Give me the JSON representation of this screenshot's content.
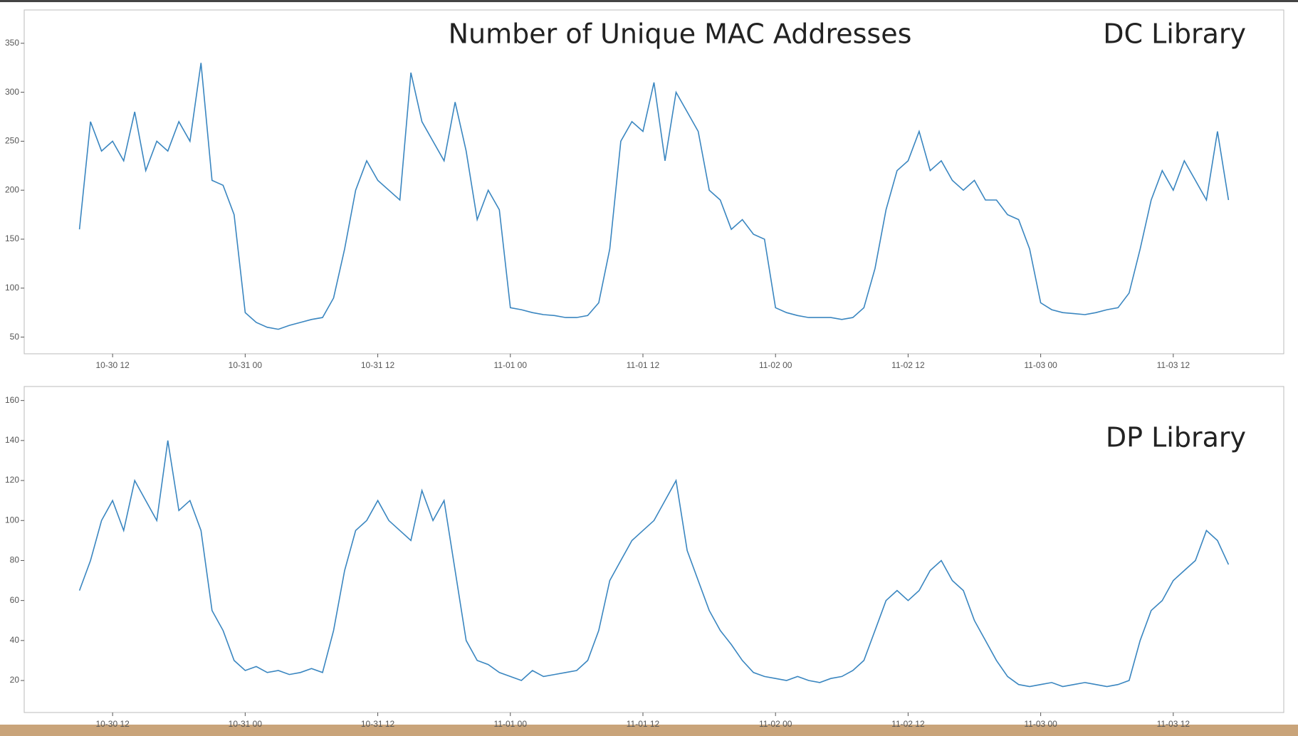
{
  "chart_data": [
    {
      "type": "line",
      "title": "Number of Unique MAC Addresses",
      "annotation": "DC Library",
      "x": [
        "10-30 09",
        "10-30 10",
        "10-30 11",
        "10-30 12",
        "10-30 13",
        "10-30 14",
        "10-30 15",
        "10-30 16",
        "10-30 17",
        "10-30 18",
        "10-30 19",
        "10-30 20",
        "10-30 21",
        "10-30 22",
        "10-30 23",
        "10-31 00",
        "10-31 01",
        "10-31 02",
        "10-31 03",
        "10-31 04",
        "10-31 05",
        "10-31 06",
        "10-31 07",
        "10-31 08",
        "10-31 09",
        "10-31 10",
        "10-31 11",
        "10-31 12",
        "10-31 13",
        "10-31 14",
        "10-31 15",
        "10-31 16",
        "10-31 17",
        "10-31 18",
        "10-31 19",
        "10-31 20",
        "10-31 21",
        "10-31 22",
        "10-31 23",
        "11-01 00",
        "11-01 01",
        "11-01 02",
        "11-01 03",
        "11-01 04",
        "11-01 05",
        "11-01 06",
        "11-01 07",
        "11-01 08",
        "11-01 09",
        "11-01 10",
        "11-01 11",
        "11-01 12",
        "11-01 13",
        "11-01 14",
        "11-01 15",
        "11-01 16",
        "11-01 17",
        "11-01 18",
        "11-01 19",
        "11-01 20",
        "11-01 21",
        "11-01 22",
        "11-01 23",
        "11-02 00",
        "11-02 01",
        "11-02 02",
        "11-02 03",
        "11-02 04",
        "11-02 05",
        "11-02 06",
        "11-02 07",
        "11-02 08",
        "11-02 09",
        "11-02 10",
        "11-02 11",
        "11-02 12",
        "11-02 13",
        "11-02 14",
        "11-02 15",
        "11-02 16",
        "11-02 17",
        "11-02 18",
        "11-02 19",
        "11-02 20",
        "11-02 21",
        "11-02 22",
        "11-02 23",
        "11-03 00",
        "11-03 01",
        "11-03 02",
        "11-03 03",
        "11-03 04",
        "11-03 05",
        "11-03 06",
        "11-03 07",
        "11-03 08",
        "11-03 09",
        "11-03 10",
        "11-03 11",
        "11-03 12",
        "11-03 13",
        "11-03 14",
        "11-03 15",
        "11-03 16",
        "11-03 17"
      ],
      "series": [
        {
          "color": "#3a86c0",
          "values": [
            160,
            270,
            240,
            250,
            230,
            280,
            220,
            250,
            240,
            270,
            250,
            330,
            210,
            205,
            175,
            75,
            65,
            60,
            58,
            62,
            65,
            68,
            70,
            90,
            140,
            200,
            230,
            210,
            200,
            190,
            320,
            270,
            250,
            230,
            290,
            240,
            170,
            200,
            180,
            80,
            78,
            75,
            73,
            72,
            70,
            70,
            72,
            85,
            140,
            250,
            270,
            260,
            310,
            230,
            300,
            280,
            260,
            200,
            190,
            160,
            170,
            155,
            150,
            80,
            75,
            72,
            70,
            70,
            70,
            68,
            70,
            80,
            120,
            180,
            220,
            230,
            260,
            220,
            230,
            210,
            200,
            210,
            190,
            190,
            175,
            170,
            140,
            85,
            78,
            75,
            74,
            73,
            75,
            78,
            80,
            95,
            140,
            190,
            220,
            200,
            230,
            210,
            190,
            260,
            190
          ]
        }
      ],
      "xlim": [
        "10-30 04",
        "11-03 22"
      ],
      "xticks": [
        "10-30 12",
        "10-31 00",
        "10-31 12",
        "11-01 00",
        "11-01 12",
        "11-02 00",
        "11-02 12",
        "11-03 00",
        "11-03 12"
      ],
      "ylim": [
        33,
        384
      ],
      "yticks": [
        50,
        100,
        150,
        200,
        250,
        300,
        350
      ]
    },
    {
      "type": "line",
      "annotation": "DP Library",
      "x": [
        "10-30 09",
        "10-30 10",
        "10-30 11",
        "10-30 12",
        "10-30 13",
        "10-30 14",
        "10-30 15",
        "10-30 16",
        "10-30 17",
        "10-30 18",
        "10-30 19",
        "10-30 20",
        "10-30 21",
        "10-30 22",
        "10-30 23",
        "10-31 00",
        "10-31 01",
        "10-31 02",
        "10-31 03",
        "10-31 04",
        "10-31 05",
        "10-31 06",
        "10-31 07",
        "10-31 08",
        "10-31 09",
        "10-31 10",
        "10-31 11",
        "10-31 12",
        "10-31 13",
        "10-31 14",
        "10-31 15",
        "10-31 16",
        "10-31 17",
        "10-31 18",
        "10-31 19",
        "10-31 20",
        "10-31 21",
        "10-31 22",
        "10-31 23",
        "11-01 00",
        "11-01 01",
        "11-01 02",
        "11-01 03",
        "11-01 04",
        "11-01 05",
        "11-01 06",
        "11-01 07",
        "11-01 08",
        "11-01 09",
        "11-01 10",
        "11-01 11",
        "11-01 12",
        "11-01 13",
        "11-01 14",
        "11-01 15",
        "11-01 16",
        "11-01 17",
        "11-01 18",
        "11-01 19",
        "11-01 20",
        "11-01 21",
        "11-01 22",
        "11-01 23",
        "11-02 00",
        "11-02 01",
        "11-02 02",
        "11-02 03",
        "11-02 04",
        "11-02 05",
        "11-02 06",
        "11-02 07",
        "11-02 08",
        "11-02 09",
        "11-02 10",
        "11-02 11",
        "11-02 12",
        "11-02 13",
        "11-02 14",
        "11-02 15",
        "11-02 16",
        "11-02 17",
        "11-02 18",
        "11-02 19",
        "11-02 20",
        "11-02 21",
        "11-02 22",
        "11-02 23",
        "11-03 00",
        "11-03 01",
        "11-03 02",
        "11-03 03",
        "11-03 04",
        "11-03 05",
        "11-03 06",
        "11-03 07",
        "11-03 08",
        "11-03 09",
        "11-03 10",
        "11-03 11",
        "11-03 12",
        "11-03 13",
        "11-03 14",
        "11-03 15",
        "11-03 16",
        "11-03 17"
      ],
      "series": [
        {
          "color": "#3a86c0",
          "values": [
            65,
            80,
            100,
            110,
            95,
            120,
            110,
            100,
            140,
            105,
            110,
            95,
            55,
            45,
            30,
            25,
            27,
            24,
            25,
            23,
            24,
            26,
            24,
            45,
            75,
            95,
            100,
            110,
            100,
            95,
            90,
            115,
            100,
            110,
            75,
            40,
            30,
            28,
            24,
            22,
            20,
            25,
            22,
            23,
            24,
            25,
            30,
            45,
            70,
            80,
            90,
            95,
            100,
            110,
            120,
            85,
            70,
            55,
            45,
            38,
            30,
            24,
            22,
            21,
            20,
            22,
            20,
            19,
            21,
            22,
            25,
            30,
            45,
            60,
            65,
            60,
            65,
            75,
            80,
            70,
            65,
            50,
            40,
            30,
            22,
            18,
            17,
            18,
            19,
            17,
            18,
            19,
            18,
            17,
            18,
            20,
            40,
            55,
            60,
            70,
            75,
            80,
            95,
            90,
            78
          ]
        }
      ],
      "xlim": [
        "10-30 04",
        "11-03 22"
      ],
      "xticks": [
        "10-30 12",
        "10-31 00",
        "10-31 12",
        "11-01 00",
        "11-01 12",
        "11-02 00",
        "11-02 12",
        "11-03 00",
        "11-03 12"
      ],
      "ylim": [
        4,
        167
      ],
      "yticks": [
        20,
        40,
        60,
        80,
        100,
        120,
        140,
        160
      ]
    }
  ]
}
